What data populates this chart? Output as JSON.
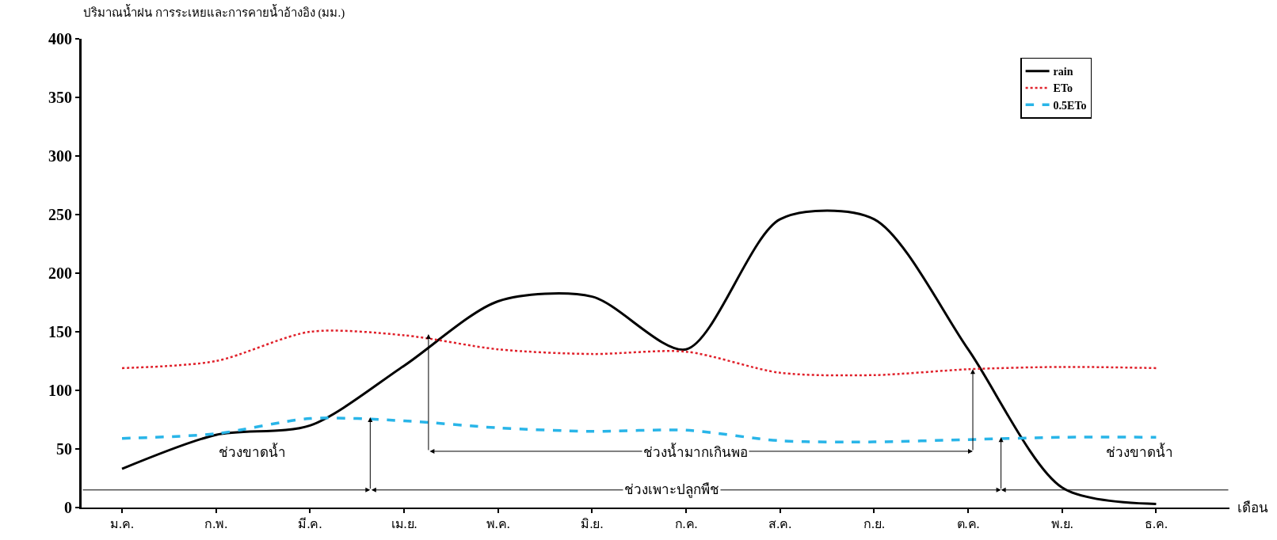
{
  "chart_data": {
    "type": "line",
    "ylabel": "ปริมาณน้ำฝน การระเหยและการคายน้ำอ้างอิง (มม.)",
    "xlabel": "เดือน",
    "categories": [
      "ม.ค.",
      "ก.พ.",
      "มี.ค.",
      "เม.ย.",
      "พ.ค.",
      "มิ.ย.",
      "ก.ค.",
      "ส.ค.",
      "ก.ย.",
      "ต.ค.",
      "พ.ย.",
      "ธ.ค."
    ],
    "ylim": [
      0,
      400
    ],
    "yticks": [
      0,
      50,
      100,
      150,
      200,
      250,
      300,
      350,
      400
    ],
    "grid": false,
    "legend": "top right",
    "series": [
      {
        "name": "rain",
        "color": "#000000",
        "line_style": "solid",
        "values": [
          33,
          62,
          70,
          121,
          176,
          180,
          135,
          246,
          246,
          135,
          17,
          3
        ]
      },
      {
        "name": "ETo",
        "color": "#e0202a",
        "line_style": "dotted",
        "values": [
          119,
          125,
          150,
          147,
          135,
          131,
          133,
          115,
          113,
          118,
          120,
          119
        ]
      },
      {
        "name": "0.5ETo",
        "color": "#29b5e8",
        "line_style": "dashed",
        "values": [
          59,
          63,
          76,
          74,
          68,
          65,
          66,
          57,
          56,
          58,
          60,
          60
        ]
      }
    ],
    "annotations": [
      "ช่วงขาดน้ำ",
      "ช่วงน้ำมากเกินพอ",
      "ช่วงเพาะปลูกพืช",
      "ช่วงขาดน้ำ"
    ]
  }
}
